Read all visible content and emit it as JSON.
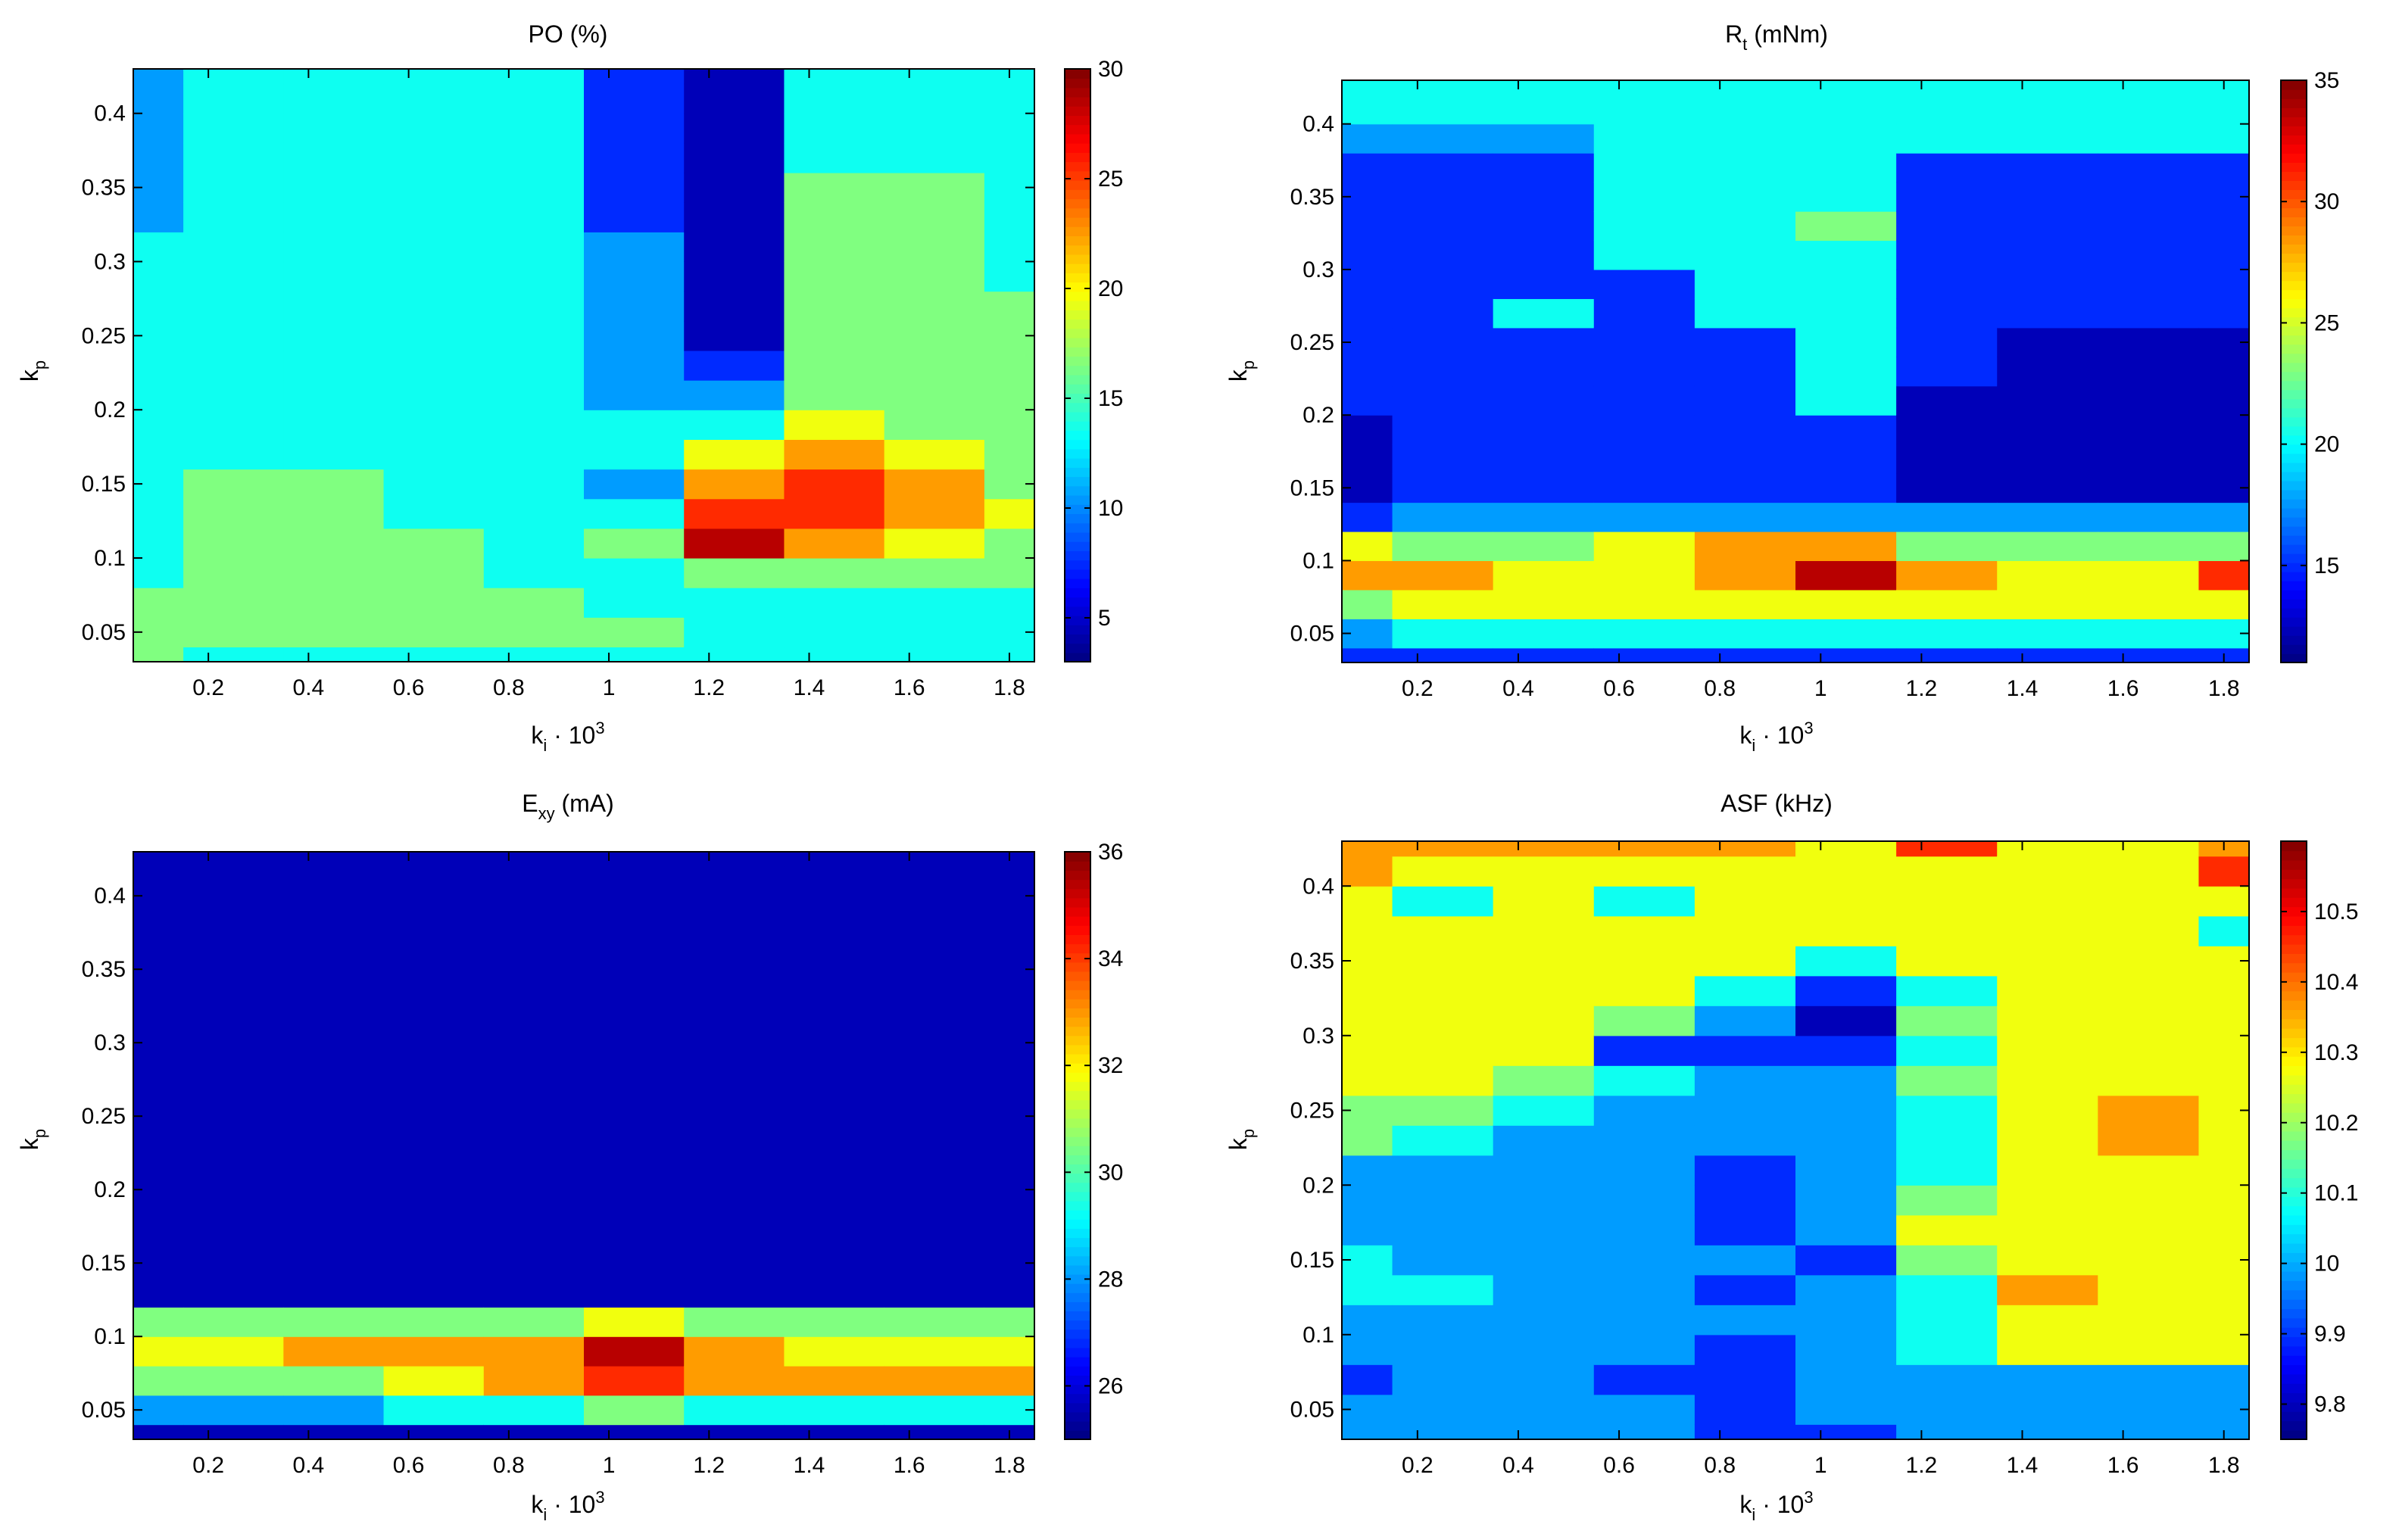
{
  "figure": {
    "layout": "2x2 grid"
  },
  "chart_data": [
    {
      "type": "contour",
      "title": "PO (%)",
      "title_main": "PO (%)",
      "title_sub": "",
      "title_tail": "",
      "xlabel": "k",
      "xlabel_sub": "i",
      "xlabel_mid": " · 10",
      "xlabel_sup": "3",
      "ylabel": "k",
      "ylabel_sub": "p",
      "xlim": [
        0.05,
        1.85
      ],
      "ylim": [
        0.03,
        0.43
      ],
      "xticks": [
        0.2,
        0.4,
        0.6,
        0.8,
        1,
        1.2,
        1.4,
        1.6,
        1.8
      ],
      "yticks": [
        0.05,
        0.1,
        0.15,
        0.2,
        0.25,
        0.3,
        0.35,
        0.4
      ],
      "colorbar": {
        "range": [
          3,
          30
        ],
        "ticks": [
          5,
          10,
          15,
          20,
          25,
          30
        ]
      },
      "x": [
        0.05,
        0.25,
        0.45,
        0.65,
        0.85,
        1.05,
        1.25,
        1.45,
        1.65,
        1.85
      ],
      "y": [
        0.03,
        0.05,
        0.07,
        0.09,
        0.11,
        0.13,
        0.15,
        0.17,
        0.19,
        0.21,
        0.23,
        0.25,
        0.27,
        0.29,
        0.31,
        0.33,
        0.35,
        0.37,
        0.39,
        0.41,
        0.43
      ],
      "z": [
        [
          16,
          15,
          15,
          14,
          14,
          14,
          14,
          13,
          13,
          12,
          12,
          12,
          12,
          12,
          12,
          11,
          11,
          11,
          11,
          11,
          11
        ],
        [
          13,
          16,
          16,
          15,
          15,
          15,
          15,
          14,
          14,
          13,
          13,
          13,
          13,
          13,
          12,
          12,
          12,
          12,
          12,
          12,
          12
        ],
        [
          13,
          16,
          16,
          15,
          15,
          15,
          15,
          14,
          14,
          13,
          13,
          13,
          13,
          13,
          12,
          12,
          12,
          12,
          12,
          12,
          12
        ],
        [
          13,
          16,
          16,
          15,
          15,
          14,
          14,
          14,
          13,
          13,
          13,
          13,
          12,
          12,
          12,
          12,
          12,
          12,
          12,
          12,
          12
        ],
        [
          13,
          15,
          15,
          14,
          14,
          14,
          14,
          14,
          13,
          13,
          13,
          12,
          12,
          12,
          12,
          12,
          12,
          12,
          12,
          12,
          12
        ],
        [
          13,
          15,
          13,
          14,
          17,
          13,
          11,
          12,
          12,
          11,
          11,
          11,
          11,
          10,
          9,
          8,
          7,
          7,
          7,
          7,
          7
        ],
        [
          12,
          13,
          14,
          16,
          28,
          25,
          22,
          18,
          14,
          9,
          7,
          5,
          5,
          4,
          4,
          3,
          3,
          3,
          3,
          3,
          3
        ],
        [
          12,
          13,
          14,
          16,
          23,
          25,
          26,
          23,
          19,
          17,
          15,
          15,
          15,
          15,
          15,
          15,
          15,
          13,
          13,
          12,
          12
        ],
        [
          12,
          13,
          14,
          16,
          20,
          22,
          21,
          19,
          17,
          15,
          15,
          15,
          15,
          15,
          15,
          15,
          15,
          13,
          13,
          12,
          12
        ],
        [
          12,
          12,
          14,
          15,
          17,
          18,
          17,
          16,
          15,
          15,
          15,
          15,
          15,
          14,
          13,
          13,
          13,
          12,
          12,
          12,
          12
        ]
      ]
    },
    {
      "type": "contour",
      "title": "Rt (mNm)",
      "title_main": "R",
      "title_sub": "t",
      "title_tail": " (mNm)",
      "xlabel": "k",
      "xlabel_sub": "i",
      "xlabel_mid": " · 10",
      "xlabel_sup": "3",
      "ylabel": "k",
      "ylabel_sub": "p",
      "xlim": [
        0.05,
        1.85
      ],
      "ylim": [
        0.03,
        0.43
      ],
      "xticks": [
        0.2,
        0.4,
        0.6,
        0.8,
        1,
        1.2,
        1.4,
        1.6,
        1.8
      ],
      "yticks": [
        0.05,
        0.1,
        0.15,
        0.2,
        0.25,
        0.3,
        0.35,
        0.4
      ],
      "colorbar": {
        "range": [
          11,
          35
        ],
        "ticks": [
          15,
          20,
          25,
          30,
          35
        ]
      },
      "x": [
        0.05,
        0.25,
        0.45,
        0.65,
        0.85,
        1.05,
        1.25,
        1.45,
        1.65,
        1.85
      ],
      "y": [
        0.03,
        0.05,
        0.07,
        0.09,
        0.11,
        0.13,
        0.15,
        0.17,
        0.19,
        0.21,
        0.23,
        0.25,
        0.27,
        0.29,
        0.31,
        0.33,
        0.35,
        0.37,
        0.39,
        0.41,
        0.43
      ],
      "z": [
        [
          14,
          18,
          22,
          29,
          25,
          16,
          13,
          13,
          13,
          14,
          15,
          15,
          15,
          15,
          15,
          15,
          15,
          15,
          18,
          19,
          19
        ],
        [
          14,
          19,
          26,
          27,
          24,
          17,
          15,
          14,
          14,
          14,
          14,
          14,
          14,
          14,
          14,
          15,
          15,
          15,
          18,
          19,
          19
        ],
        [
          14,
          19,
          26,
          26,
          24,
          17,
          15,
          15,
          15,
          15,
          15,
          16,
          20,
          15,
          15,
          15,
          15,
          15,
          18,
          19,
          19
        ],
        [
          15,
          19,
          26,
          26,
          26,
          17,
          15,
          15,
          15,
          15,
          15,
          15,
          15,
          15,
          19,
          19,
          19,
          19,
          19,
          19,
          19
        ],
        [
          15,
          19,
          26,
          27,
          27,
          17,
          15,
          15,
          15,
          15,
          15,
          16,
          19,
          19,
          19,
          19,
          19,
          19,
          19,
          19,
          19
        ],
        [
          15,
          19,
          26,
          33,
          27,
          17,
          16,
          15,
          16,
          19,
          19,
          19,
          19,
          19,
          19,
          23,
          19,
          19,
          19,
          19,
          19
        ],
        [
          15,
          19,
          26,
          27,
          24,
          17,
          13,
          12,
          12,
          13,
          14,
          15,
          15,
          15,
          15,
          15,
          15,
          15,
          19,
          19,
          19
        ],
        [
          15,
          19,
          26,
          26,
          24,
          17,
          13,
          12,
          12,
          12,
          12,
          13,
          14,
          14,
          14,
          14,
          14,
          14,
          19,
          19,
          19
        ],
        [
          15,
          19,
          26,
          26,
          24,
          17,
          13,
          12,
          12,
          12,
          12,
          12,
          14,
          14,
          14,
          14,
          14,
          14,
          19,
          19,
          19
        ],
        [
          15,
          19,
          26,
          31,
          24,
          17,
          13,
          12,
          12,
          12,
          12,
          12,
          14,
          14,
          14,
          14,
          14,
          14,
          19,
          19,
          19
        ]
      ]
    },
    {
      "type": "contour",
      "title": "Exy (mA)",
      "title_main": "E",
      "title_sub": "xy",
      "title_tail": " (mA)",
      "xlabel": "k",
      "xlabel_sub": "i",
      "xlabel_mid": " · 10",
      "xlabel_sup": "3",
      "ylabel": "k",
      "ylabel_sub": "p",
      "xlim": [
        0.05,
        1.85
      ],
      "ylim": [
        0.03,
        0.43
      ],
      "xticks": [
        0.2,
        0.4,
        0.6,
        0.8,
        1,
        1.2,
        1.4,
        1.6,
        1.8
      ],
      "yticks": [
        0.05,
        0.1,
        0.15,
        0.2,
        0.25,
        0.3,
        0.35,
        0.4
      ],
      "colorbar": {
        "range": [
          25,
          36
        ],
        "ticks": [
          26,
          28,
          30,
          32,
          34,
          36
        ]
      },
      "x": [
        0.05,
        0.25,
        0.45,
        0.65,
        0.85,
        1.05,
        1.25,
        1.45,
        1.65,
        1.85
      ],
      "y": [
        0.03,
        0.05,
        0.07,
        0.09,
        0.11,
        0.13,
        0.15,
        0.17,
        0.19,
        0.21,
        0.23,
        0.25,
        0.27,
        0.29,
        0.31,
        0.33,
        0.35,
        0.37,
        0.39,
        0.41,
        0.43
      ],
      "z": [
        [
          25.5,
          28,
          31,
          32,
          30,
          25,
          25,
          25,
          25,
          25,
          25,
          25,
          25,
          25,
          25.5,
          25.5,
          25,
          25,
          25,
          25,
          25
        ],
        [
          25.5,
          28,
          31,
          32,
          30,
          25,
          25,
          25,
          25,
          25,
          25,
          25,
          25,
          25,
          25,
          25,
          25,
          25,
          25,
          25.5,
          25.5
        ],
        [
          25.5,
          28,
          31,
          33,
          30,
          25,
          25,
          25,
          25,
          25,
          25,
          25,
          25,
          25,
          25,
          25,
          25,
          25,
          25,
          25.5,
          25.5
        ],
        [
          25.5,
          29,
          32,
          33,
          30,
          25,
          25,
          25,
          25,
          25,
          25,
          25,
          25,
          25,
          25,
          25,
          25,
          25,
          25,
          25,
          25.5
        ],
        [
          25.5,
          29,
          33,
          33,
          30,
          25,
          25,
          25,
          25,
          25,
          25,
          25,
          25,
          25,
          25,
          25,
          25,
          25,
          25,
          25,
          25
        ],
        [
          25.5,
          30,
          34,
          35,
          32,
          26,
          25,
          25,
          25,
          25,
          25,
          25,
          25,
          25,
          25,
          25,
          25,
          25,
          25,
          25,
          25.5
        ],
        [
          25.5,
          29,
          33,
          33,
          30,
          25,
          25,
          25,
          25,
          25,
          25,
          25,
          25,
          25,
          25,
          25,
          25,
          25,
          25,
          25,
          25
        ],
        [
          25.5,
          29,
          33,
          32,
          30,
          25,
          25,
          25,
          25,
          25,
          25,
          25,
          25,
          25,
          25,
          25,
          25,
          25,
          25,
          25.5,
          25
        ],
        [
          25.5,
          29,
          33,
          32,
          30,
          25,
          25,
          25,
          25.5,
          25,
          25,
          25,
          25,
          25,
          25,
          25,
          25,
          25,
          25,
          25,
          25
        ],
        [
          25.5,
          29,
          33,
          32,
          30,
          25,
          25.5,
          25.5,
          25,
          25,
          25,
          25,
          25,
          25,
          25,
          25,
          25,
          25,
          25,
          25,
          25.5
        ]
      ]
    },
    {
      "type": "contour",
      "title": "ASF (kHz)",
      "title_main": "ASF (kHz)",
      "title_sub": "",
      "title_tail": "",
      "xlabel": "k",
      "xlabel_sub": "i",
      "xlabel_mid": " · 10",
      "xlabel_sup": "3",
      "ylabel": "k",
      "ylabel_sub": "p",
      "xlim": [
        0.05,
        1.85
      ],
      "ylim": [
        0.03,
        0.43
      ],
      "xticks": [
        0.2,
        0.4,
        0.6,
        0.8,
        1,
        1.2,
        1.4,
        1.6,
        1.8
      ],
      "yticks": [
        0.05,
        0.1,
        0.15,
        0.2,
        0.25,
        0.3,
        0.35,
        0.4
      ],
      "colorbar": {
        "range": [
          9.75,
          10.6
        ],
        "ticks": [
          9.8,
          9.9,
          10,
          10.1,
          10.2,
          10.3,
          10.4,
          10.5
        ]
      },
      "x": [
        0.05,
        0.25,
        0.45,
        0.65,
        0.85,
        1.05,
        1.25,
        1.45,
        1.65,
        1.85
      ],
      "y": [
        0.03,
        0.05,
        0.07,
        0.09,
        0.11,
        0.13,
        0.15,
        0.17,
        0.19,
        0.21,
        0.23,
        0.25,
        0.27,
        0.29,
        0.31,
        0.33,
        0.35,
        0.37,
        0.39,
        0.41,
        0.43
      ],
      "z": [
        [
          9.95,
          9.95,
          9.85,
          9.95,
          9.95,
          10.05,
          10.05,
          9.95,
          9.95,
          9.95,
          10.15,
          10.15,
          10.25,
          10.25,
          10.25,
          10.25,
          10.25,
          10.3,
          10.3,
          10.38,
          10.38
        ],
        [
          9.95,
          9.95,
          9.95,
          9.95,
          9.95,
          10.05,
          9.95,
          9.95,
          9.95,
          9.95,
          10.05,
          10.15,
          10.25,
          10.25,
          10.25,
          10.25,
          10.25,
          10.25,
          10.1,
          10.25,
          10.38
        ],
        [
          9.95,
          9.95,
          9.95,
          9.95,
          9.95,
          9.95,
          9.95,
          9.95,
          9.95,
          9.95,
          9.95,
          10.05,
          10.15,
          10.25,
          10.25,
          10.25,
          10.25,
          10.25,
          10.25,
          10.25,
          10.38
        ],
        [
          9.95,
          9.95,
          9.85,
          9.95,
          9.95,
          9.95,
          9.95,
          9.95,
          9.95,
          9.95,
          9.95,
          9.95,
          10.05,
          9.85,
          10.15,
          10.25,
          10.25,
          10.25,
          10.1,
          10.25,
          10.38
        ],
        [
          9.85,
          9.85,
          9.85,
          9.85,
          9.95,
          9.85,
          9.95,
          9.85,
          9.85,
          9.85,
          9.95,
          9.95,
          9.95,
          9.85,
          9.95,
          10.05,
          10.25,
          10.25,
          10.25,
          10.25,
          10.38
        ],
        [
          9.85,
          9.95,
          9.95,
          9.95,
          9.95,
          9.95,
          9.85,
          9.95,
          9.95,
          9.95,
          9.95,
          9.95,
          9.95,
          9.85,
          9.75,
          9.85,
          10.05,
          10.25,
          10.25,
          10.25,
          10.25
        ],
        [
          9.95,
          9.95,
          9.95,
          10.05,
          10.05,
          10.05,
          10.15,
          10.25,
          10.15,
          10.05,
          10.05,
          10.05,
          10.15,
          10.1,
          10.15,
          10.05,
          10.25,
          10.25,
          10.25,
          10.25,
          10.5
        ],
        [
          9.95,
          9.95,
          9.95,
          10.25,
          10.3,
          10.4,
          10.3,
          10.25,
          10.25,
          10.25,
          10.25,
          10.25,
          10.25,
          10.25,
          10.25,
          10.25,
          10.25,
          10.25,
          10.25,
          10.25,
          10.25
        ],
        [
          9.95,
          9.95,
          9.95,
          10.25,
          10.25,
          10.25,
          10.25,
          10.25,
          10.25,
          10.3,
          10.38,
          10.38,
          10.3,
          10.25,
          10.25,
          10.25,
          10.25,
          10.25,
          10.25,
          10.25,
          10.25
        ],
        [
          9.95,
          9.95,
          9.95,
          10.25,
          10.25,
          10.25,
          10.25,
          10.25,
          10.25,
          10.3,
          10.3,
          10.3,
          10.25,
          10.25,
          10.25,
          10.25,
          10.25,
          10.1,
          10.25,
          10.5,
          10.38
        ]
      ]
    }
  ]
}
